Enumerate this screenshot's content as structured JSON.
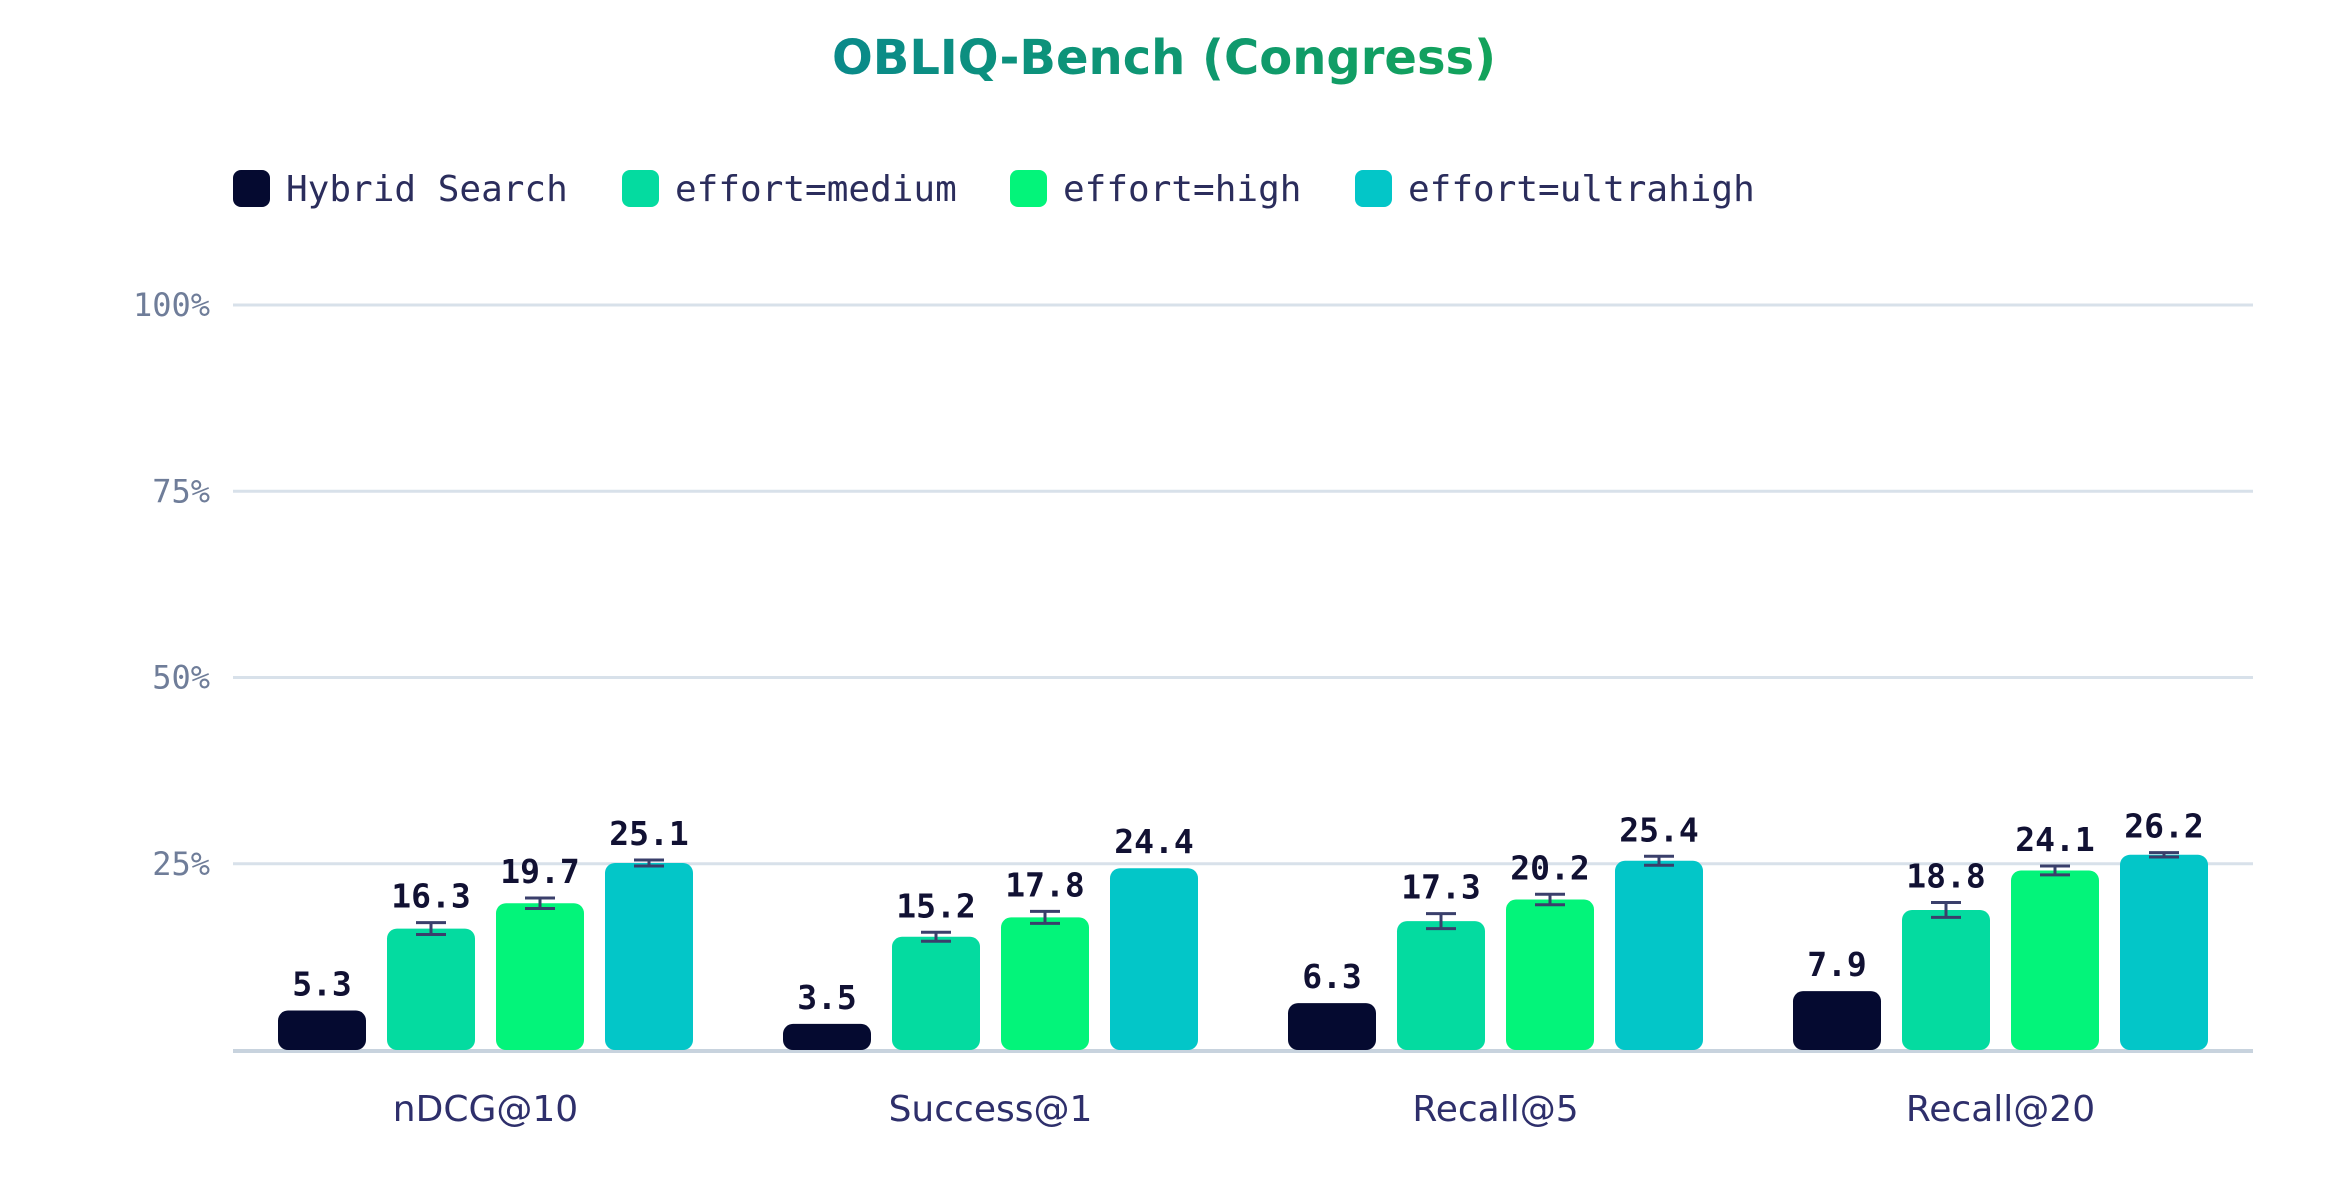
{
  "chart_data": {
    "type": "bar",
    "title": "OBLIQ-Bench (Congress)",
    "title_colors": [
      "#0a8a8a",
      "#13a35a"
    ],
    "xlabel": "",
    "ylabel": "",
    "ylim": [
      0,
      100
    ],
    "y_ticks": [
      25,
      50,
      75,
      100
    ],
    "y_tick_labels": [
      "25%",
      "50%",
      "75%",
      "100%"
    ],
    "grid": true,
    "legend_position": "top-left",
    "categories": [
      "nDCG@10",
      "Success@1",
      "Recall@5",
      "Recall@20"
    ],
    "series": [
      {
        "name": "Hybrid Search",
        "color": "#050a30",
        "values": [
          5.3,
          3.5,
          6.3,
          7.9
        ],
        "errors": [
          0,
          0,
          0,
          0
        ]
      },
      {
        "name": "effort=medium",
        "color": "#04dba0",
        "values": [
          16.3,
          15.2,
          17.3,
          18.8
        ],
        "errors": [
          0.8,
          0.6,
          1.0,
          1.0
        ]
      },
      {
        "name": "effort=high",
        "color": "#03f47a",
        "values": [
          19.7,
          17.8,
          20.2,
          24.1
        ],
        "errors": [
          0.7,
          0.8,
          0.7,
          0.6
        ]
      },
      {
        "name": "effort=ultrahigh",
        "color": "#03c6c8",
        "values": [
          25.1,
          24.4,
          25.4,
          26.2
        ],
        "errors": [
          0.4,
          0,
          0.6,
          0.3
        ]
      }
    ]
  }
}
